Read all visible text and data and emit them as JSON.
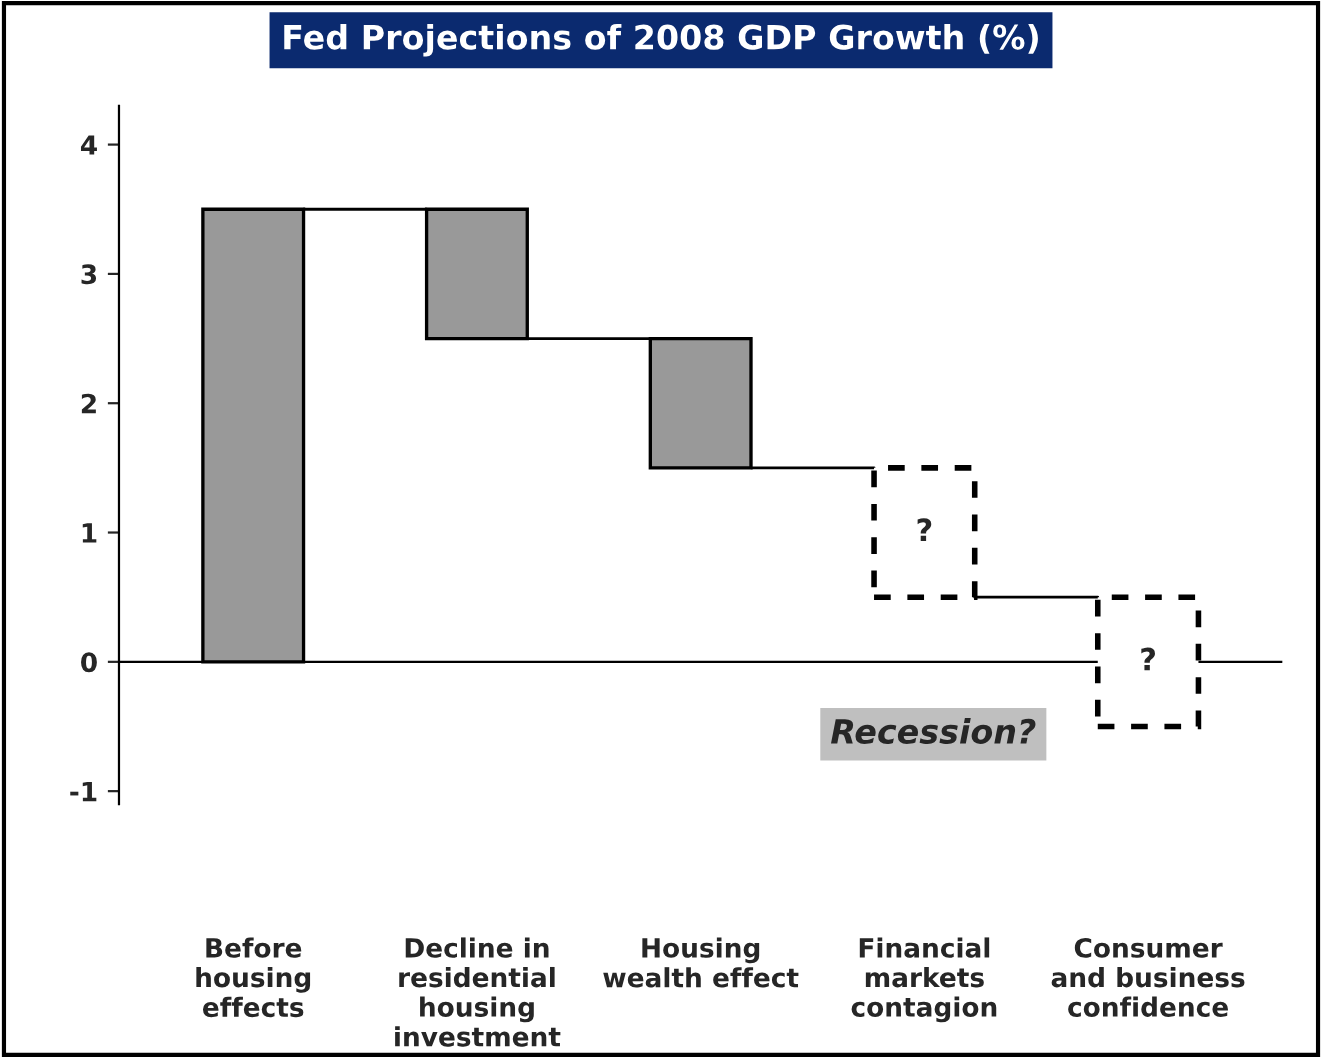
{
  "chart_data": {
    "type": "bar",
    "title": "Fed Projections of 2008 GDP Growth (%)",
    "categories": [
      "Before\nhousing\neffects",
      "Decline in\nresidential\nhousing\ninvestment",
      "Housing\nwealth effect",
      "Financial\nmarkets\ncontagion",
      "Consumer\nand business\nconfidence"
    ],
    "series": [
      {
        "color": "#999999",
        "line_style": "solid",
        "base": [
          0,
          2.5,
          1.5,
          null,
          null
        ],
        "values": [
          3.5,
          1,
          1,
          null,
          null
        ]
      },
      {
        "color": "#ffffff",
        "line_style": "dashed",
        "base": [
          null,
          null,
          null,
          0.5,
          -0.5
        ],
        "values": [
          null,
          null,
          null,
          1,
          1
        ],
        "value_labels": [
          null,
          null,
          null,
          "?",
          "?"
        ]
      }
    ],
    "ref_lines": [
      {
        "axis": "y",
        "value": 0,
        "color": "#000000"
      }
    ],
    "ylim": [
      -1.1,
      4.3
    ],
    "yticks": [
      -1,
      0,
      1,
      2,
      3,
      4
    ],
    "grid": false,
    "legend": false,
    "annotations": [
      "Recession?"
    ]
  }
}
